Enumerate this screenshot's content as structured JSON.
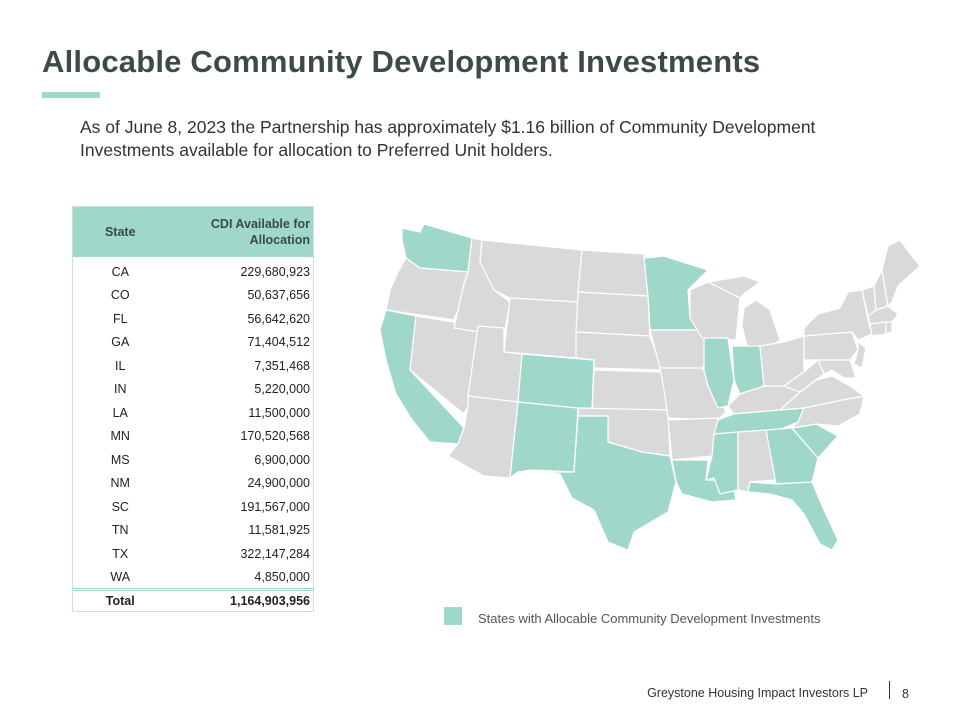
{
  "title": "Allocable Community Development Investments",
  "intro": "As of June 8, 2023 the Partnership has approximately $1.16 billion of Community Development Investments available for allocation to Preferred Unit holders.",
  "table": {
    "header_state": "State",
    "header_cdi": "CDI Available for Allocation",
    "rows": [
      {
        "state": "CA",
        "value": "229,680,923"
      },
      {
        "state": "CO",
        "value": "50,637,656"
      },
      {
        "state": "FL",
        "value": "56,642,620"
      },
      {
        "state": "GA",
        "value": "71,404,512"
      },
      {
        "state": "IL",
        "value": "7,351,468"
      },
      {
        "state": "IN",
        "value": "5,220,000"
      },
      {
        "state": "LA",
        "value": "11,500,000"
      },
      {
        "state": "MN",
        "value": "170,520,568"
      },
      {
        "state": "MS",
        "value": "6,900,000"
      },
      {
        "state": "NM",
        "value": "24,900,000"
      },
      {
        "state": "SC",
        "value": "191,567,000"
      },
      {
        "state": "TN",
        "value": "11,581,925"
      },
      {
        "state": "TX",
        "value": "322,147,284"
      },
      {
        "state": "WA",
        "value": "4,850,000"
      }
    ],
    "total_label": "Total",
    "total_value": "1,164,903,956"
  },
  "map": {
    "highlight_color": "#9fd8cb",
    "base_color": "#d9d9d9",
    "highlighted_states": [
      "CA",
      "CO",
      "FL",
      "GA",
      "IL",
      "IN",
      "LA",
      "MN",
      "MS",
      "NM",
      "SC",
      "TN",
      "TX",
      "WA"
    ]
  },
  "legend": {
    "label": "States with Allocable Community Development Investments"
  },
  "footer": {
    "company": "Greystone Housing Impact Investors LP",
    "page": "8"
  }
}
